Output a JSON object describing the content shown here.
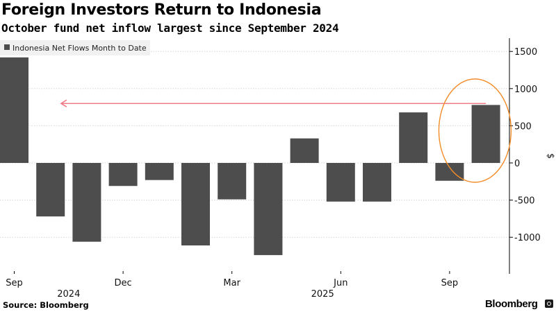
{
  "title": "Foreign Investors Return to Indonesia",
  "subtitle": "October fund net inflow largest since September 2024",
  "source": "Source: Bloomberg",
  "brand": "Bloomberg",
  "chart_data": {
    "type": "bar",
    "categories": [
      "Sep 2024",
      "Oct 2024",
      "Nov 2024",
      "Dec 2024",
      "Jan 2025",
      "Feb 2025",
      "Mar 2025",
      "Apr 2025",
      "May 2025",
      "Jun 2025",
      "Jul 2025",
      "Aug 2025",
      "Sep 2025",
      "Oct 2025"
    ],
    "series": [
      {
        "name": "Indonesia Net Flows Month to Date",
        "values": [
          1420,
          -720,
          -1060,
          -310,
          -230,
          -1110,
          -490,
          -1240,
          330,
          -520,
          -520,
          680,
          -240,
          780
        ],
        "color": "#4d4d4d"
      }
    ],
    "ylabel": "$",
    "ylim": [
      -1500,
      1650
    ],
    "yticks": [
      -1000,
      -500,
      0,
      500,
      1000,
      1500
    ],
    "ytick_labels": [
      "-1000",
      "-500",
      "0",
      "500",
      "1000",
      "1500"
    ],
    "axis_position": "right",
    "grid": true,
    "legend_position": "top-left",
    "x_month_labels": [
      {
        "index": 0,
        "label": "Sep"
      },
      {
        "index": 3,
        "label": "Dec"
      },
      {
        "index": 6,
        "label": "Mar"
      },
      {
        "index": 9,
        "label": "Jun"
      },
      {
        "index": 12,
        "label": "Sep"
      }
    ],
    "x_year_labels": [
      {
        "index": 1.5,
        "label": "2024"
      },
      {
        "index": 8.5,
        "label": "2025"
      }
    ],
    "annotations": [
      {
        "type": "arrow",
        "from_index": 13,
        "to_index": 1.1,
        "value": 800,
        "color": "#f07c86"
      },
      {
        "type": "ellipse",
        "around_index": 12.7,
        "value_top": 1130,
        "value_bottom": -260,
        "color": "#f28c28"
      }
    ]
  }
}
